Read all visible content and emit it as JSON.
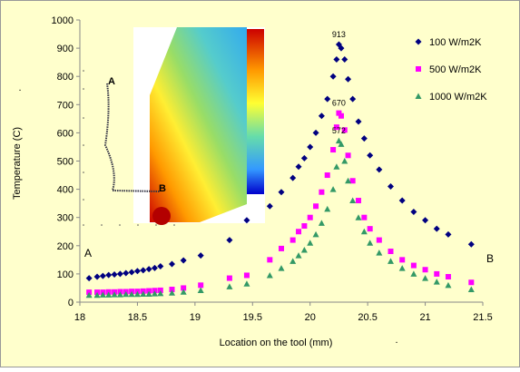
{
  "chart_data": {
    "type": "scatter",
    "xlabel": "Location on the tool (mm)",
    "ylabel": "Temperature (C)",
    "xlim": [
      18,
      21.5
    ],
    "xticks": [
      18,
      18.5,
      19,
      19.5,
      20,
      20.5,
      21,
      21.5
    ],
    "ylim": [
      0,
      1000
    ],
    "yticks": [
      0,
      100,
      200,
      300,
      400,
      500,
      600,
      700,
      800,
      900,
      1000
    ],
    "legend": "upper right",
    "annotations": [
      "A",
      "B",
      "A",
      "B",
      ".",
      "."
    ],
    "series": [
      {
        "name": "100 W/m2K",
        "color": "#000080",
        "marker": "diamond",
        "x": [
          18.08,
          18.15,
          18.2,
          18.25,
          18.3,
          18.35,
          18.4,
          18.45,
          18.5,
          18.55,
          18.6,
          18.65,
          18.7,
          18.8,
          18.9,
          19.05,
          19.3,
          19.45,
          19.65,
          19.75,
          19.85,
          19.9,
          19.95,
          20.0,
          20.05,
          20.1,
          20.15,
          20.2,
          20.23,
          20.25,
          20.27,
          20.3,
          20.33,
          20.37,
          20.42,
          20.47,
          20.52,
          20.6,
          20.7,
          20.8,
          20.9,
          21.0,
          21.1,
          21.2,
          21.4
        ],
        "values": [
          85,
          90,
          93,
          96,
          98,
          100,
          103,
          106,
          110,
          113,
          117,
          121,
          127,
          135,
          148,
          165,
          220,
          290,
          340,
          390,
          440,
          480,
          510,
          550,
          600,
          660,
          720,
          800,
          860,
          913,
          900,
          860,
          790,
          720,
          640,
          580,
          520,
          470,
          410,
          360,
          320,
          290,
          260,
          240,
          205
        ]
      },
      {
        "name": "500 W/m2K",
        "color": "#ff00ff",
        "marker": "square",
        "x": [
          18.08,
          18.15,
          18.2,
          18.25,
          18.3,
          18.35,
          18.4,
          18.45,
          18.5,
          18.55,
          18.6,
          18.65,
          18.7,
          18.8,
          18.9,
          19.05,
          19.3,
          19.45,
          19.65,
          19.75,
          19.85,
          19.9,
          19.95,
          20.0,
          20.05,
          20.1,
          20.15,
          20.2,
          20.23,
          20.25,
          20.27,
          20.3,
          20.33,
          20.37,
          20.42,
          20.47,
          20.52,
          20.6,
          20.7,
          20.8,
          20.9,
          21.0,
          21.1,
          21.2,
          21.4
        ],
        "values": [
          35,
          35,
          35,
          36,
          36,
          37,
          37,
          38,
          38,
          39,
          40,
          41,
          42,
          45,
          50,
          60,
          85,
          95,
          150,
          190,
          220,
          250,
          270,
          300,
          340,
          390,
          450,
          540,
          620,
          670,
          660,
          610,
          520,
          430,
          360,
          300,
          260,
          220,
          180,
          150,
          130,
          115,
          100,
          90,
          70
        ]
      },
      {
        "name": "1000 W/m2K",
        "color": "#339966",
        "marker": "triangle",
        "x": [
          18.08,
          18.15,
          18.2,
          18.25,
          18.3,
          18.35,
          18.4,
          18.45,
          18.5,
          18.55,
          18.6,
          18.65,
          18.7,
          18.8,
          18.9,
          19.05,
          19.3,
          19.45,
          19.65,
          19.75,
          19.85,
          19.9,
          19.95,
          20.0,
          20.05,
          20.1,
          20.15,
          20.2,
          20.23,
          20.25,
          20.27,
          20.3,
          20.33,
          20.37,
          20.42,
          20.47,
          20.52,
          20.6,
          20.7,
          20.8,
          20.9,
          21.0,
          21.1,
          21.2,
          21.4
        ],
        "values": [
          25,
          25,
          26,
          26,
          27,
          27,
          28,
          28,
          28,
          29,
          29,
          30,
          31,
          33,
          36,
          42,
          55,
          65,
          95,
          120,
          145,
          165,
          185,
          210,
          240,
          280,
          330,
          400,
          480,
          572,
          560,
          500,
          430,
          360,
          300,
          250,
          210,
          175,
          145,
          120,
          100,
          85,
          72,
          60,
          45
        ]
      }
    ]
  }
}
